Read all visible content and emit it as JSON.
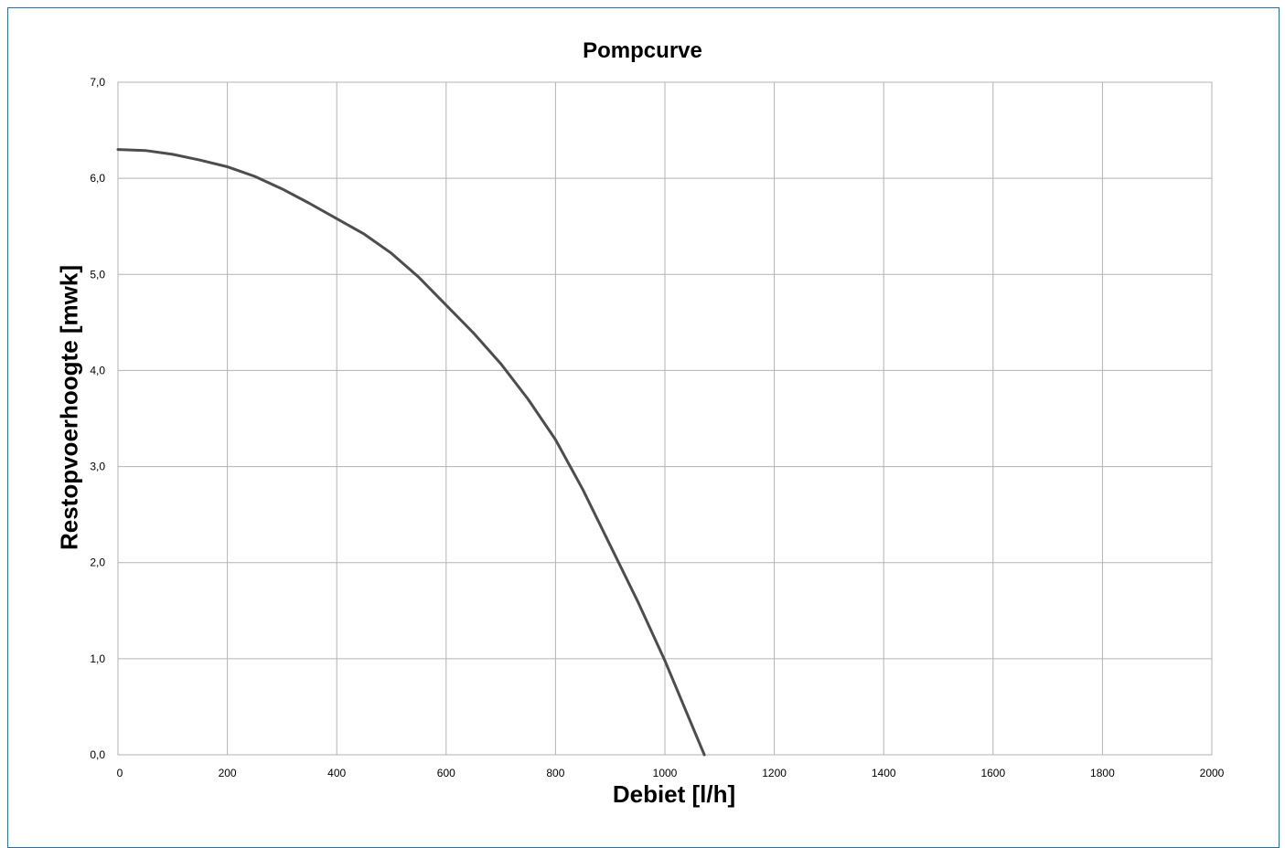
{
  "chart_data": {
    "type": "line",
    "title": "Pompcurve",
    "xlabel": "Debiet [l/h]",
    "ylabel": "Restopvoerhoogte [mwk]",
    "xlim": [
      0,
      2000
    ],
    "ylim": [
      0,
      7
    ],
    "grid": true,
    "x_ticks": [
      "0",
      "200",
      "400",
      "600",
      "800",
      "1000",
      "1200",
      "1400",
      "1600",
      "1800",
      "2000"
    ],
    "y_ticks": [
      "0,0",
      "1,0",
      "2,0",
      "3,0",
      "4,0",
      "5,0",
      "6,0",
      "7,0"
    ],
    "series": [
      {
        "color": "#4d4d4d",
        "x": [
          0,
          50,
          100,
          150,
          200,
          250,
          300,
          350,
          400,
          450,
          500,
          550,
          600,
          650,
          700,
          750,
          800,
          850,
          900,
          950,
          1000,
          1050,
          1072
        ],
        "y": [
          6.3,
          6.29,
          6.25,
          6.19,
          6.12,
          6.02,
          5.89,
          5.74,
          5.58,
          5.42,
          5.22,
          4.97,
          4.68,
          4.39,
          4.07,
          3.7,
          3.28,
          2.76,
          2.18,
          1.6,
          0.98,
          0.3,
          0.0
        ]
      }
    ]
  }
}
